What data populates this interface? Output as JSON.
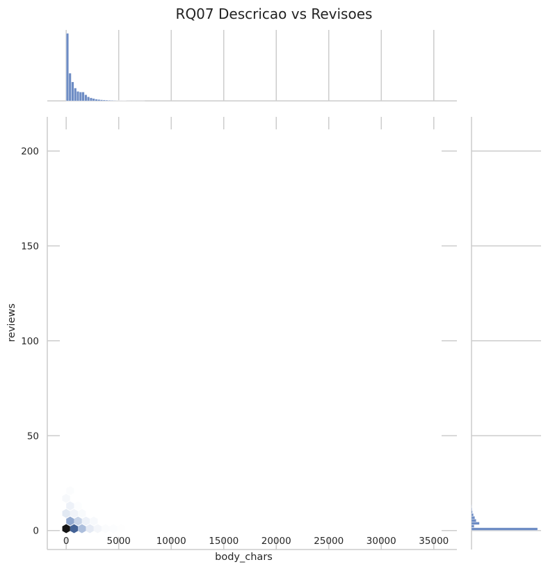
{
  "chart_data": {
    "type": "hexbin",
    "title": "RQ07 Descricao vs Revisoes",
    "xlabel": "body_chars",
    "ylabel": "reviews",
    "xlim": [
      -1800,
      37200
    ],
    "ylim": [
      -10,
      218
    ],
    "x_ticks": [
      0,
      5000,
      10000,
      15000,
      20000,
      25000,
      30000,
      35000
    ],
    "y_ticks": [
      0,
      50,
      100,
      150,
      200
    ],
    "grid": true,
    "colors": {
      "hex": "#4c72b0",
      "hist": "#6d8cc4",
      "grid": "#cccccc",
      "text": "#262626"
    },
    "hexbins": [
      {
        "x": 0,
        "y": 1,
        "count": 1.0
      },
      {
        "x": 750,
        "y": 1,
        "count": 0.75
      },
      {
        "x": 375,
        "y": 5,
        "count": 0.45
      },
      {
        "x": 1500,
        "y": 1,
        "count": 0.35
      },
      {
        "x": 1125,
        "y": 5,
        "count": 0.25
      },
      {
        "x": 0,
        "y": 9,
        "count": 0.13
      },
      {
        "x": 2250,
        "y": 1,
        "count": 0.12
      },
      {
        "x": 375,
        "y": 13,
        "count": 0.08
      },
      {
        "x": 1875,
        "y": 5,
        "count": 0.08
      },
      {
        "x": 750,
        "y": 9,
        "count": 0.07
      },
      {
        "x": 3000,
        "y": 1,
        "count": 0.05
      },
      {
        "x": 0,
        "y": 17,
        "count": 0.04
      },
      {
        "x": 2625,
        "y": 5,
        "count": 0.035
      },
      {
        "x": 1500,
        "y": 9,
        "count": 0.03
      },
      {
        "x": 3750,
        "y": 1,
        "count": 0.02
      },
      {
        "x": 375,
        "y": 21,
        "count": 0.02
      },
      {
        "x": 4500,
        "y": 1,
        "count": 0.012
      },
      {
        "x": 1125,
        "y": 13,
        "count": 0.012
      },
      {
        "x": 5250,
        "y": 1,
        "count": 0.006
      }
    ],
    "x_marginal": {
      "bin_width": 250,
      "counts": [
        1.0,
        0.41,
        0.28,
        0.19,
        0.14,
        0.13,
        0.13,
        0.09,
        0.06,
        0.045,
        0.035,
        0.025,
        0.02,
        0.015,
        0.012,
        0.01,
        0.008,
        0.006,
        0.005,
        0.004,
        0.003,
        0.002,
        0.002,
        0.0015,
        0.001,
        0.001,
        0.001,
        0.0008,
        0.0006,
        0.0005
      ]
    },
    "y_marginal": {
      "bin_width": 1.5,
      "bin_start": 0,
      "counts": [
        1.0,
        0.04,
        0.12,
        0.07,
        0.05,
        0.03,
        0.015,
        0.008,
        0.004
      ]
    }
  }
}
